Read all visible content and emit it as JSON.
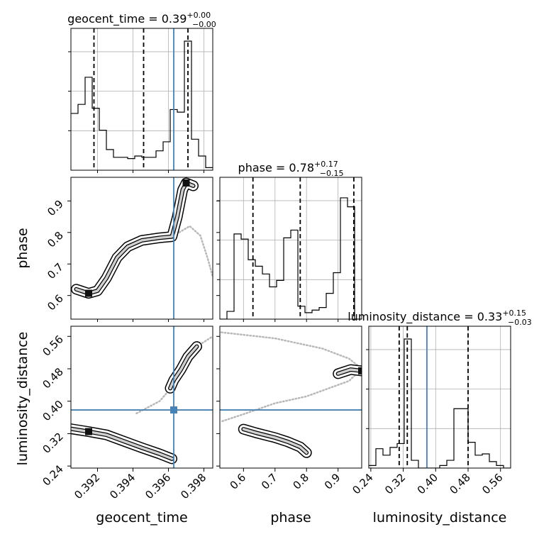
{
  "figure": {
    "background": "#ffffff",
    "truth_color": "#4682b4",
    "contour_color": "#000000",
    "quantile_style": "dashed"
  },
  "titles": [
    {
      "param": "geocent_time",
      "value": "0.39",
      "plus": "+0.00",
      "minus": "−0.00"
    },
    {
      "param": "phase",
      "value": "0.78",
      "plus": "+0.17",
      "minus": "−0.15"
    },
    {
      "param": "luminosity_distance",
      "value": "0.33",
      "plus": "+0.15",
      "minus": "−0.03"
    }
  ],
  "axis_labels": {
    "x": [
      "geocent_time",
      "phase",
      "luminosity_distance"
    ],
    "y": [
      "phase",
      "luminosity_distance"
    ]
  },
  "chart_data": {
    "type": "corner",
    "parameters": [
      "geocent_time",
      "phase",
      "luminosity_distance"
    ],
    "ranges": {
      "geocent_time": [
        0.3905,
        0.3985
      ],
      "phase": [
        0.525,
        0.975
      ],
      "luminosity_distance": [
        0.235,
        0.585
      ]
    },
    "ticks": {
      "geocent_time": {
        "values": [
          0.392,
          0.394,
          0.396,
          0.398
        ],
        "labels": [
          "0.392",
          "0.394",
          "0.396",
          "0.398"
        ]
      },
      "phase": {
        "values": [
          0.6,
          0.7,
          0.8,
          0.9
        ],
        "labels": [
          "0.6",
          "0.7",
          "0.8",
          "0.9"
        ]
      },
      "luminosity_distance": {
        "values": [
          0.24,
          0.32,
          0.4,
          0.48,
          0.56
        ],
        "labels": [
          "0.24",
          "0.32",
          "0.40",
          "0.48",
          "0.56"
        ]
      }
    },
    "truths": {
      "geocent_time": 0.3963,
      "phase": null,
      "luminosity_distance": 0.3784
    },
    "quantiles": {
      "geocent_time": [
        0.3918,
        0.3946,
        0.3971
      ],
      "phase": [
        0.63,
        0.78,
        0.95
      ],
      "luminosity_distance": [
        0.31,
        0.33,
        0.48
      ]
    },
    "histograms": {
      "geocent_time": {
        "edges": [
          0.3905,
          0.3909,
          0.3913,
          0.3917,
          0.3921,
          0.3925,
          0.3929,
          0.3933,
          0.3937,
          0.3941,
          0.3945,
          0.3949,
          0.3953,
          0.3957,
          0.3961,
          0.3965,
          0.3969,
          0.3973,
          0.3977,
          0.3981,
          0.3985
        ],
        "counts": [
          0.44,
          0.51,
          0.72,
          0.48,
          0.31,
          0.16,
          0.1,
          0.1,
          0.09,
          0.11,
          0.1,
          0.1,
          0.15,
          0.22,
          0.47,
          0.45,
          1.0,
          0.24,
          0.11,
          0.02
        ]
      },
      "phase": {
        "edges": [
          0.525,
          0.5475,
          0.57,
          0.5925,
          0.615,
          0.6375,
          0.66,
          0.6825,
          0.705,
          0.7275,
          0.75,
          0.7725,
          0.795,
          0.8175,
          0.84,
          0.8625,
          0.885,
          0.9075,
          0.93,
          0.9525,
          0.975
        ],
        "counts": [
          0.0,
          0.06,
          0.66,
          0.62,
          0.46,
          0.41,
          0.35,
          0.25,
          0.3,
          0.63,
          0.69,
          0.1,
          0.05,
          0.07,
          0.09,
          0.2,
          0.36,
          0.94,
          0.87,
          0.0
        ]
      },
      "luminosity_distance": {
        "edges": [
          0.235,
          0.2525,
          0.27,
          0.2875,
          0.305,
          0.3225,
          0.34,
          0.3575,
          0.375,
          0.3925,
          0.41,
          0.4275,
          0.445,
          0.4625,
          0.48,
          0.4975,
          0.515,
          0.5325,
          0.55,
          0.5675,
          0.585
        ],
        "counts": [
          0.02,
          0.15,
          0.1,
          0.16,
          0.19,
          1.0,
          0.06,
          0.0,
          0.0,
          0.0,
          0.02,
          0.06,
          0.46,
          0.46,
          0.2,
          0.1,
          0.11,
          0.05,
          0.02,
          0.0
        ]
      }
    },
    "pairs": [
      {
        "x": "geocent_time",
        "y": "phase",
        "modes": [
          [
            0.3915,
            0.607
          ],
          [
            0.397,
            0.957
          ]
        ],
        "ridge": [
          [
            0.3908,
            0.62
          ],
          [
            0.3915,
            0.607
          ],
          [
            0.392,
            0.615
          ],
          [
            0.3925,
            0.655
          ],
          [
            0.3931,
            0.72
          ],
          [
            0.3937,
            0.755
          ],
          [
            0.3945,
            0.775
          ],
          [
            0.3955,
            0.783
          ],
          [
            0.3962,
            0.787
          ],
          [
            0.3965,
            0.85
          ],
          [
            0.3968,
            0.935
          ],
          [
            0.397,
            0.957
          ],
          [
            0.3974,
            0.948
          ]
        ],
        "tail": [
          [
            0.3963,
            0.79
          ],
          [
            0.3972,
            0.82
          ],
          [
            0.3978,
            0.79
          ],
          [
            0.3982,
            0.72
          ],
          [
            0.3985,
            0.66
          ]
        ]
      },
      {
        "x": "geocent_time",
        "y": "luminosity_distance",
        "modes": [
          [
            0.3915,
            0.325
          ]
        ],
        "ridge": [
          [
            0.3905,
            0.332
          ],
          [
            0.3915,
            0.325
          ],
          [
            0.3925,
            0.317
          ],
          [
            0.3935,
            0.301
          ],
          [
            0.3945,
            0.285
          ],
          [
            0.3955,
            0.27
          ],
          [
            0.3962,
            0.258
          ]
        ],
        "ridge2": [
          [
            0.3961,
            0.432
          ],
          [
            0.3963,
            0.452
          ],
          [
            0.3967,
            0.478
          ],
          [
            0.3971,
            0.51
          ],
          [
            0.3976,
            0.535
          ]
        ],
        "tail": [
          [
            0.3942,
            0.37
          ],
          [
            0.3955,
            0.4
          ],
          [
            0.3966,
            0.455
          ],
          [
            0.3976,
            0.535
          ],
          [
            0.3985,
            0.56
          ]
        ]
      },
      {
        "x": "phase",
        "y": "luminosity_distance",
        "modes": [
          [
            0.975,
            0.475
          ]
        ],
        "ridge": [
          [
            0.6,
            0.331
          ],
          [
            0.64,
            0.322
          ],
          [
            0.7,
            0.31
          ],
          [
            0.74,
            0.3
          ],
          [
            0.78,
            0.287
          ],
          [
            0.8,
            0.273
          ]
        ],
        "ridge2": [
          [
            0.9,
            0.468
          ],
          [
            0.94,
            0.478
          ],
          [
            0.975,
            0.475
          ]
        ],
        "tail": [
          [
            0.53,
            0.57
          ],
          [
            0.7,
            0.555
          ],
          [
            0.85,
            0.53
          ],
          [
            0.935,
            0.505
          ],
          [
            0.975,
            0.48
          ],
          [
            0.935,
            0.45
          ],
          [
            0.8,
            0.412
          ],
          [
            0.7,
            0.395
          ],
          [
            0.6,
            0.368
          ],
          [
            0.53,
            0.35
          ]
        ]
      }
    ]
  }
}
